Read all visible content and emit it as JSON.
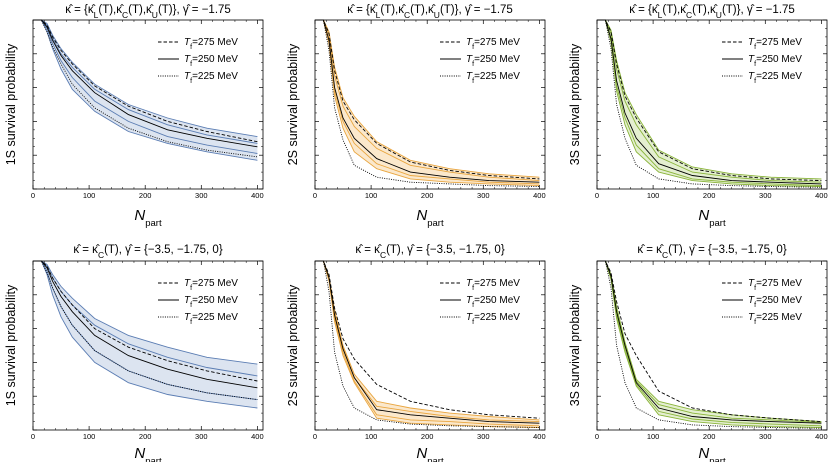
{
  "legend_template": {
    "prefix": "T",
    "sub": "f",
    "suffix": "=",
    "unit": " MeV"
  },
  "xlabel_main": "N",
  "xlabel_sub": "part",
  "chart_data": [
    {
      "type": "line",
      "title": "κ̂ = {κ̂L(T),κ̂C(T),κ̂U(T)}, γ̂ = −1.75",
      "title_parts": [
        {
          "t": "κ̂ = {κ̂"
        },
        {
          "t": "L",
          "sub": true
        },
        {
          "t": "(T),κ̂"
        },
        {
          "t": "C",
          "sub": true
        },
        {
          "t": "(T),κ̂"
        },
        {
          "t": "U",
          "sub": true
        },
        {
          "t": "(T)}, γ̂ = −1.75"
        }
      ],
      "ylabel": "1S survival probability",
      "color": "#5b7db3",
      "fill": "#dce4f0",
      "xlim": [
        0,
        410
      ],
      "ylim": [
        0,
        1.0
      ],
      "xticks": [
        0,
        100,
        200,
        300,
        400
      ],
      "yticks": [
        0,
        0.2,
        0.4,
        0.6,
        0.8,
        1.0
      ],
      "x": [
        0,
        5,
        15,
        25,
        35,
        50,
        70,
        110,
        170,
        240,
        310,
        400
      ],
      "series": [
        {
          "name": "275",
          "style": "dashed",
          "values": [
            1,
            1,
            1,
            0.97,
            0.9,
            0.82,
            0.74,
            0.61,
            0.49,
            0.4,
            0.34,
            0.28
          ]
        },
        {
          "name": "250",
          "style": "solid",
          "values": [
            1,
            1,
            1,
            0.96,
            0.88,
            0.79,
            0.7,
            0.57,
            0.44,
            0.35,
            0.3,
            0.25
          ]
        },
        {
          "name": "225",
          "style": "dotted",
          "values": [
            1,
            1,
            1,
            0.93,
            0.84,
            0.74,
            0.62,
            0.48,
            0.36,
            0.28,
            0.23,
            0.19
          ]
        }
      ],
      "band_upper": [
        1,
        1,
        1,
        0.98,
        0.91,
        0.83,
        0.75,
        0.62,
        0.5,
        0.42,
        0.36,
        0.31
      ],
      "band_lower": [
        1,
        1,
        1,
        0.93,
        0.83,
        0.71,
        0.59,
        0.46,
        0.34,
        0.27,
        0.22,
        0.17
      ],
      "inner_lines": [
        [
          1,
          1,
          1,
          0.97,
          0.89,
          0.8,
          0.72,
          0.59,
          0.47,
          0.38,
          0.32,
          0.27
        ],
        [
          1,
          1,
          1,
          0.95,
          0.86,
          0.76,
          0.66,
          0.52,
          0.4,
          0.31,
          0.26,
          0.21
        ]
      ]
    },
    {
      "type": "line",
      "title": "κ̂ = {κ̂L(T),κ̂C(T),κ̂U(T)}, γ̂ = −1.75",
      "title_parts": [
        {
          "t": "κ̂ = {κ̂"
        },
        {
          "t": "L",
          "sub": true
        },
        {
          "t": "(T),κ̂"
        },
        {
          "t": "C",
          "sub": true
        },
        {
          "t": "(T),κ̂"
        },
        {
          "t": "U",
          "sub": true
        },
        {
          "t": "(T)}, γ̂ = −1.75"
        }
      ],
      "ylabel": "2S survival probability",
      "color": "#e9a640",
      "fill": "#fbe8cc",
      "xlim": [
        0,
        410
      ],
      "ylim": [
        0,
        1.0
      ],
      "xticks": [
        0,
        100,
        200,
        300,
        400
      ],
      "yticks": [
        0,
        0.2,
        0.4,
        0.6,
        0.8,
        1.0
      ],
      "x": [
        0,
        5,
        15,
        25,
        35,
        50,
        70,
        110,
        170,
        240,
        310,
        400
      ],
      "series": [
        {
          "name": "275",
          "style": "dashed",
          "values": [
            1,
            1,
            1,
            0.92,
            0.7,
            0.52,
            0.41,
            0.27,
            0.16,
            0.11,
            0.08,
            0.06
          ]
        },
        {
          "name": "250",
          "style": "solid",
          "values": [
            1,
            1,
            1,
            0.88,
            0.6,
            0.42,
            0.3,
            0.18,
            0.1,
            0.07,
            0.05,
            0.04
          ]
        },
        {
          "name": "225",
          "style": "dotted",
          "values": [
            1,
            1,
            1,
            0.82,
            0.48,
            0.29,
            0.14,
            0.07,
            0.04,
            0.03,
            0.02,
            0.015
          ]
        }
      ],
      "band_upper": [
        1,
        1,
        1,
        0.93,
        0.72,
        0.54,
        0.43,
        0.28,
        0.17,
        0.12,
        0.09,
        0.07
      ],
      "band_lower": [
        1,
        1,
        1,
        0.86,
        0.55,
        0.36,
        0.22,
        0.12,
        0.06,
        0.04,
        0.03,
        0.02
      ],
      "inner_lines": [
        [
          1,
          1,
          1,
          0.91,
          0.67,
          0.49,
          0.37,
          0.24,
          0.14,
          0.1,
          0.07,
          0.05
        ],
        [
          1,
          1,
          1,
          0.87,
          0.58,
          0.4,
          0.27,
          0.15,
          0.08,
          0.06,
          0.04,
          0.03
        ]
      ]
    },
    {
      "type": "line",
      "title": "κ̂ = {κ̂L(T),κ̂C(T),κ̂U(T)}, γ̂ = −1.75",
      "title_parts": [
        {
          "t": "κ̂ = {κ̂"
        },
        {
          "t": "L",
          "sub": true
        },
        {
          "t": "(T),κ̂"
        },
        {
          "t": "C",
          "sub": true
        },
        {
          "t": "(T),κ̂"
        },
        {
          "t": "U",
          "sub": true
        },
        {
          "t": "(T)}, γ̂ = −1.75"
        }
      ],
      "ylabel": "3S survival probability",
      "color": "#8ab43a",
      "fill": "#e4efd0",
      "xlim": [
        0,
        410
      ],
      "ylim": [
        0,
        1.0
      ],
      "xticks": [
        0,
        100,
        200,
        300,
        400
      ],
      "yticks": [
        0,
        0.2,
        0.4,
        0.6,
        0.8,
        1.0
      ],
      "x": [
        0,
        5,
        15,
        25,
        35,
        50,
        70,
        110,
        170,
        240,
        310,
        400
      ],
      "series": [
        {
          "name": "275",
          "style": "dashed",
          "values": [
            1,
            1,
            1,
            0.93,
            0.74,
            0.55,
            0.42,
            0.22,
            0.12,
            0.08,
            0.06,
            0.05
          ]
        },
        {
          "name": "250",
          "style": "solid",
          "values": [
            1,
            1,
            1,
            0.89,
            0.64,
            0.45,
            0.3,
            0.15,
            0.08,
            0.05,
            0.04,
            0.03
          ]
        },
        {
          "name": "225",
          "style": "dotted",
          "values": [
            1,
            1,
            1,
            0.83,
            0.5,
            0.3,
            0.14,
            0.06,
            0.03,
            0.02,
            0.015,
            0.01
          ]
        }
      ],
      "band_upper": [
        1,
        1,
        1,
        0.94,
        0.76,
        0.57,
        0.44,
        0.23,
        0.13,
        0.09,
        0.07,
        0.06
      ],
      "band_lower": [
        1,
        1,
        1,
        0.87,
        0.58,
        0.38,
        0.22,
        0.1,
        0.05,
        0.03,
        0.02,
        0.015
      ],
      "inner_lines": [
        [
          1,
          1,
          1,
          0.92,
          0.71,
          0.52,
          0.38,
          0.19,
          0.1,
          0.07,
          0.05,
          0.04
        ],
        [
          1,
          1,
          1,
          0.88,
          0.61,
          0.42,
          0.26,
          0.12,
          0.06,
          0.04,
          0.03,
          0.02
        ]
      ]
    },
    {
      "type": "line",
      "title": "κ̂ = κ̂C(T), γ̂ = {−3.5, −1.75, 0}",
      "title_parts": [
        {
          "t": "κ̂ = κ̂"
        },
        {
          "t": "C",
          "sub": true
        },
        {
          "t": "(T), γ̂ = {−3.5, −1.75, 0}"
        }
      ],
      "ylabel": "1S survival probability",
      "color": "#5b7db3",
      "fill": "#dce4f0",
      "xlim": [
        0,
        410
      ],
      "ylim": [
        0,
        1.0
      ],
      "xticks": [
        0,
        100,
        200,
        300,
        400
      ],
      "yticks": [
        0,
        0.2,
        0.4,
        0.6,
        0.8,
        1.0
      ],
      "x": [
        0,
        5,
        15,
        25,
        35,
        50,
        70,
        110,
        170,
        240,
        310,
        400
      ],
      "series": [
        {
          "name": "275",
          "style": "dashed",
          "values": [
            1,
            1,
            1,
            0.97,
            0.9,
            0.82,
            0.74,
            0.6,
            0.49,
            0.41,
            0.35,
            0.29
          ]
        },
        {
          "name": "250",
          "style": "solid",
          "values": [
            1,
            1,
            1,
            0.96,
            0.88,
            0.79,
            0.7,
            0.56,
            0.44,
            0.36,
            0.3,
            0.25
          ]
        },
        {
          "name": "225",
          "style": "dotted",
          "values": [
            1,
            1,
            1,
            0.93,
            0.84,
            0.73,
            0.62,
            0.47,
            0.35,
            0.27,
            0.22,
            0.18
          ]
        }
      ],
      "band_upper": [
        1,
        1,
        1,
        0.98,
        0.92,
        0.85,
        0.78,
        0.66,
        0.56,
        0.49,
        0.43,
        0.39
      ],
      "band_lower": [
        1,
        1,
        1,
        0.92,
        0.8,
        0.67,
        0.55,
        0.4,
        0.28,
        0.21,
        0.17,
        0.13
      ],
      "inner_lines": [
        [
          1,
          1,
          1,
          0.97,
          0.9,
          0.82,
          0.74,
          0.62,
          0.51,
          0.43,
          0.37,
          0.32
        ],
        [
          1,
          1,
          1,
          0.94,
          0.84,
          0.73,
          0.62,
          0.47,
          0.35,
          0.27,
          0.22,
          0.18
        ]
      ]
    },
    {
      "type": "line",
      "title": "κ̂ = κ̂C(T), γ̂ = {−3.5, −1.75, 0}",
      "title_parts": [
        {
          "t": "κ̂ = κ̂"
        },
        {
          "t": "C",
          "sub": true
        },
        {
          "t": "(T), γ̂ = {−3.5, −1.75, 0}"
        }
      ],
      "ylabel": "2S survival probability",
      "color": "#e9a640",
      "fill": "#fbe8cc",
      "xlim": [
        0,
        410
      ],
      "ylim": [
        0,
        1.0
      ],
      "xticks": [
        0,
        100,
        200,
        300,
        400
      ],
      "yticks": [
        0,
        0.2,
        0.4,
        0.6,
        0.8,
        1.0
      ],
      "x": [
        0,
        5,
        15,
        25,
        35,
        50,
        70,
        110,
        170,
        240,
        310,
        400
      ],
      "series": [
        {
          "name": "275",
          "style": "dashed",
          "values": [
            1,
            1,
            1,
            0.92,
            0.72,
            0.54,
            0.42,
            0.27,
            0.17,
            0.12,
            0.09,
            0.07
          ]
        },
        {
          "name": "250",
          "style": "solid",
          "values": [
            1,
            1,
            1,
            0.9,
            0.68,
            0.48,
            0.31,
            0.12,
            0.09,
            0.07,
            0.05,
            0.04
          ]
        },
        {
          "name": "225",
          "style": "dotted",
          "values": [
            1,
            1,
            1,
            0.82,
            0.46,
            0.26,
            0.13,
            0.06,
            0.035,
            0.025,
            0.02,
            0.015
          ]
        }
      ],
      "band_upper": [
        1,
        1,
        1,
        0.91,
        0.71,
        0.5,
        0.33,
        0.17,
        0.13,
        0.1,
        0.08,
        0.06
      ],
      "band_lower": [
        1,
        1,
        1,
        0.88,
        0.64,
        0.44,
        0.28,
        0.07,
        0.04,
        0.03,
        0.02,
        0.015
      ],
      "inner_lines": [
        [
          1,
          1,
          1,
          0.9,
          0.69,
          0.49,
          0.31,
          0.14,
          0.11,
          0.08,
          0.06,
          0.05
        ],
        [
          1,
          1,
          1,
          0.89,
          0.66,
          0.46,
          0.29,
          0.09,
          0.06,
          0.05,
          0.035,
          0.025
        ]
      ]
    },
    {
      "type": "line",
      "title": "κ̂ = κ̂C(T), γ̂ = {−3.5, −1.75, 0}",
      "title_parts": [
        {
          "t": "κ̂ = κ̂"
        },
        {
          "t": "C",
          "sub": true
        },
        {
          "t": "(T), γ̂ = {−3.5, −1.75, 0}"
        }
      ],
      "ylabel": "3S survival probability",
      "color": "#8ab43a",
      "fill": "#e4efd0",
      "xlim": [
        0,
        410
      ],
      "ylim": [
        0,
        1.0
      ],
      "xticks": [
        0,
        100,
        200,
        300,
        400
      ],
      "yticks": [
        0,
        0.2,
        0.4,
        0.6,
        0.8,
        1.0
      ],
      "x": [
        0,
        5,
        15,
        25,
        35,
        50,
        70,
        110,
        170,
        240,
        310,
        400
      ],
      "series": [
        {
          "name": "275",
          "style": "dashed",
          "values": [
            1,
            1,
            1,
            0.93,
            0.76,
            0.57,
            0.44,
            0.23,
            0.13,
            0.09,
            0.07,
            0.05
          ]
        },
        {
          "name": "250",
          "style": "solid",
          "values": [
            1,
            1,
            1,
            0.91,
            0.7,
            0.5,
            0.28,
            0.13,
            0.08,
            0.06,
            0.05,
            0.04
          ]
        },
        {
          "name": "225",
          "style": "dotted",
          "values": [
            1,
            1,
            1,
            0.84,
            0.5,
            0.28,
            0.13,
            0.06,
            0.03,
            0.02,
            0.015,
            0.01
          ]
        }
      ],
      "band_upper": [
        1,
        1,
        1,
        0.92,
        0.73,
        0.52,
        0.3,
        0.17,
        0.12,
        0.09,
        0.07,
        0.05
      ],
      "band_lower": [
        1,
        1,
        1,
        0.89,
        0.66,
        0.46,
        0.26,
        0.09,
        0.05,
        0.03,
        0.02,
        0.015
      ],
      "inner_lines": [
        [
          1,
          1,
          1,
          0.91,
          0.71,
          0.51,
          0.29,
          0.15,
          0.1,
          0.07,
          0.06,
          0.045
        ],
        [
          1,
          1,
          1,
          0.9,
          0.68,
          0.48,
          0.27,
          0.11,
          0.065,
          0.045,
          0.035,
          0.025
        ]
      ]
    }
  ]
}
